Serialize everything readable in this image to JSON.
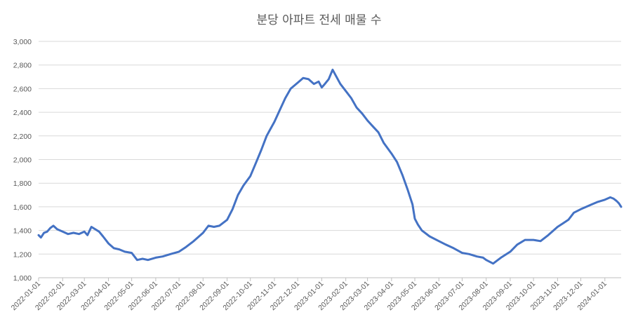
{
  "chart_data": {
    "type": "line",
    "title": "분당 아파트 전세 매물 수",
    "xlabel": "",
    "ylabel": "",
    "ylim": [
      1000,
      3000
    ],
    "yticks": [
      1000,
      1200,
      1400,
      1600,
      1800,
      2000,
      2200,
      2400,
      2600,
      2800,
      3000
    ],
    "ytick_labels": [
      "1,000",
      "1,200",
      "1,400",
      "1,600",
      "1,800",
      "2,000",
      "2,200",
      "2,400",
      "2,600",
      "2,800",
      "3,000"
    ],
    "x_range": [
      "2022-01-01",
      "2024-01-22"
    ],
    "xticks": [
      "2022-01-01",
      "2022-02-01",
      "2022-03-01",
      "2022-04-01",
      "2022-05-01",
      "2022-06-01",
      "2022-07-01",
      "2022-08-01",
      "2022-09-01",
      "2022-10-01",
      "2022-11-01",
      "2022-12-01",
      "2023-01-01",
      "2023-02-01",
      "2023-03-01",
      "2023-04-01",
      "2023-05-01",
      "2023-06-01",
      "2023-07-01",
      "2023-08-01",
      "2023-09-01",
      "2023-10-01",
      "2023-11-01",
      "2023-12-01",
      "2024-01-01"
    ],
    "grid": true,
    "legend": "none",
    "color": "#4472c4",
    "series": [
      {
        "x": [
          "2022-01-01",
          "2022-01-04",
          "2022-01-08",
          "2022-01-12",
          "2022-01-16",
          "2022-01-20",
          "2022-01-25",
          "2022-02-01",
          "2022-02-08",
          "2022-02-15",
          "2022-02-22",
          "2022-03-01",
          "2022-03-05",
          "2022-03-10",
          "2022-03-15",
          "2022-03-20",
          "2022-03-25",
          "2022-04-01",
          "2022-04-08",
          "2022-04-15",
          "2022-04-22",
          "2022-05-01",
          "2022-05-08",
          "2022-05-15",
          "2022-05-22",
          "2022-06-01",
          "2022-06-10",
          "2022-06-20",
          "2022-07-01",
          "2022-07-10",
          "2022-07-20",
          "2022-08-01",
          "2022-08-08",
          "2022-08-15",
          "2022-08-22",
          "2022-09-01",
          "2022-09-08",
          "2022-09-15",
          "2022-09-22",
          "2022-10-01",
          "2022-10-08",
          "2022-10-15",
          "2022-10-22",
          "2022-11-01",
          "2022-11-08",
          "2022-11-15",
          "2022-11-22",
          "2022-12-01",
          "2022-12-08",
          "2022-12-15",
          "2022-12-22",
          "2022-12-28",
          "2023-01-01",
          "2023-01-05",
          "2023-01-10",
          "2023-01-15",
          "2023-01-20",
          "2023-01-25",
          "2023-02-01",
          "2023-02-08",
          "2023-02-15",
          "2023-02-22",
          "2023-03-01",
          "2023-03-08",
          "2023-03-15",
          "2023-03-22",
          "2023-04-01",
          "2023-04-08",
          "2023-04-15",
          "2023-04-22",
          "2023-04-28",
          "2023-05-01",
          "2023-05-05",
          "2023-05-10",
          "2023-05-20",
          "2023-06-01",
          "2023-06-10",
          "2023-06-20",
          "2023-07-01",
          "2023-07-10",
          "2023-07-20",
          "2023-07-28",
          "2023-08-01",
          "2023-08-10",
          "2023-08-20",
          "2023-09-01",
          "2023-09-10",
          "2023-09-20",
          "2023-10-01",
          "2023-10-10",
          "2023-10-20",
          "2023-11-01",
          "2023-11-08",
          "2023-11-15",
          "2023-11-22",
          "2023-12-01",
          "2023-12-08",
          "2023-12-15",
          "2023-12-22",
          "2024-01-01",
          "2024-01-08",
          "2024-01-12",
          "2024-01-16",
          "2024-01-19",
          "2024-01-22"
        ],
        "values": [
          1360,
          1340,
          1380,
          1390,
          1420,
          1440,
          1410,
          1390,
          1370,
          1380,
          1370,
          1390,
          1360,
          1430,
          1410,
          1390,
          1350,
          1290,
          1250,
          1240,
          1220,
          1210,
          1150,
          1160,
          1150,
          1170,
          1180,
          1200,
          1220,
          1260,
          1310,
          1380,
          1440,
          1430,
          1440,
          1490,
          1580,
          1700,
          1780,
          1860,
          1970,
          2080,
          2200,
          2320,
          2420,
          2520,
          2600,
          2650,
          2690,
          2680,
          2640,
          2660,
          2610,
          2640,
          2680,
          2760,
          2700,
          2640,
          2580,
          2520,
          2440,
          2390,
          2330,
          2280,
          2230,
          2140,
          2050,
          1980,
          1870,
          1740,
          1620,
          1500,
          1450,
          1400,
          1350,
          1310,
          1280,
          1250,
          1210,
          1200,
          1180,
          1170,
          1150,
          1120,
          1170,
          1220,
          1280,
          1320,
          1320,
          1310,
          1360,
          1430,
          1460,
          1490,
          1550,
          1580,
          1600,
          1620,
          1640,
          1660,
          1680,
          1670,
          1650,
          1630,
          1600
        ]
      }
    ]
  }
}
